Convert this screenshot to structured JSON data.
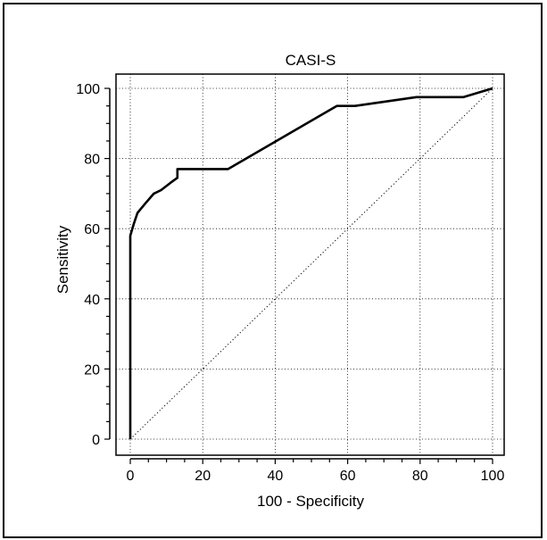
{
  "chart_data": {
    "type": "line",
    "title": "CASI-S",
    "xlabel": "100 - Specificity",
    "ylabel": "Sensitivity",
    "xlim": [
      0,
      100
    ],
    "ylim": [
      0,
      100
    ],
    "xticks": [
      0,
      20,
      40,
      60,
      80,
      100
    ],
    "yticks": [
      0,
      20,
      40,
      60,
      80,
      100
    ],
    "grid": true,
    "series": [
      {
        "x": [
          0,
          0,
          1,
          2,
          4,
          6.5,
          8.5,
          11,
          13,
          13,
          27,
          57,
          62,
          79,
          92,
          100
        ],
        "y": [
          0,
          58,
          61.5,
          64.5,
          67,
          70,
          71,
          73,
          74.5,
          77,
          77,
          95,
          95,
          97.5,
          97.5,
          100
        ],
        "color": "#000000"
      },
      {
        "x": [
          0,
          100
        ],
        "y": [
          0,
          100
        ],
        "style": "dotted",
        "color": "#000000"
      }
    ]
  }
}
